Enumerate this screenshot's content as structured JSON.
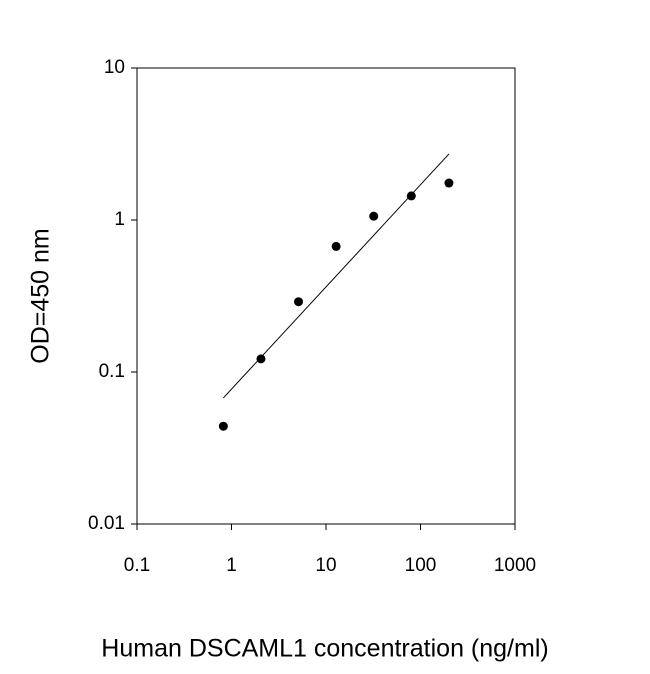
{
  "chart_data": {
    "type": "scatter",
    "x_label": "Human DSCAML1 concentration (ng/ml)",
    "y_label": "OD=450 nm",
    "xscale": "log",
    "yscale": "log",
    "xlim": [
      0.1,
      1000
    ],
    "xticks": [
      0.1,
      1,
      10,
      100,
      1000
    ],
    "ylim": [
      0.01,
      10
    ],
    "yticks": [
      0.01,
      0.1,
      1,
      10
    ],
    "series": [
      {
        "type": "scatter",
        "color": "#000000",
        "x": [
          0.82,
          2.05,
          5.12,
          12.8,
          32,
          80,
          200
        ],
        "values": [
          0.044,
          0.122,
          0.29,
          0.67,
          1.06,
          1.44,
          1.75
        ]
      },
      {
        "type": "line",
        "color": "#000000",
        "x": [
          0.82,
          200
        ],
        "values": [
          0.0675,
          2.72
        ]
      }
    ]
  }
}
